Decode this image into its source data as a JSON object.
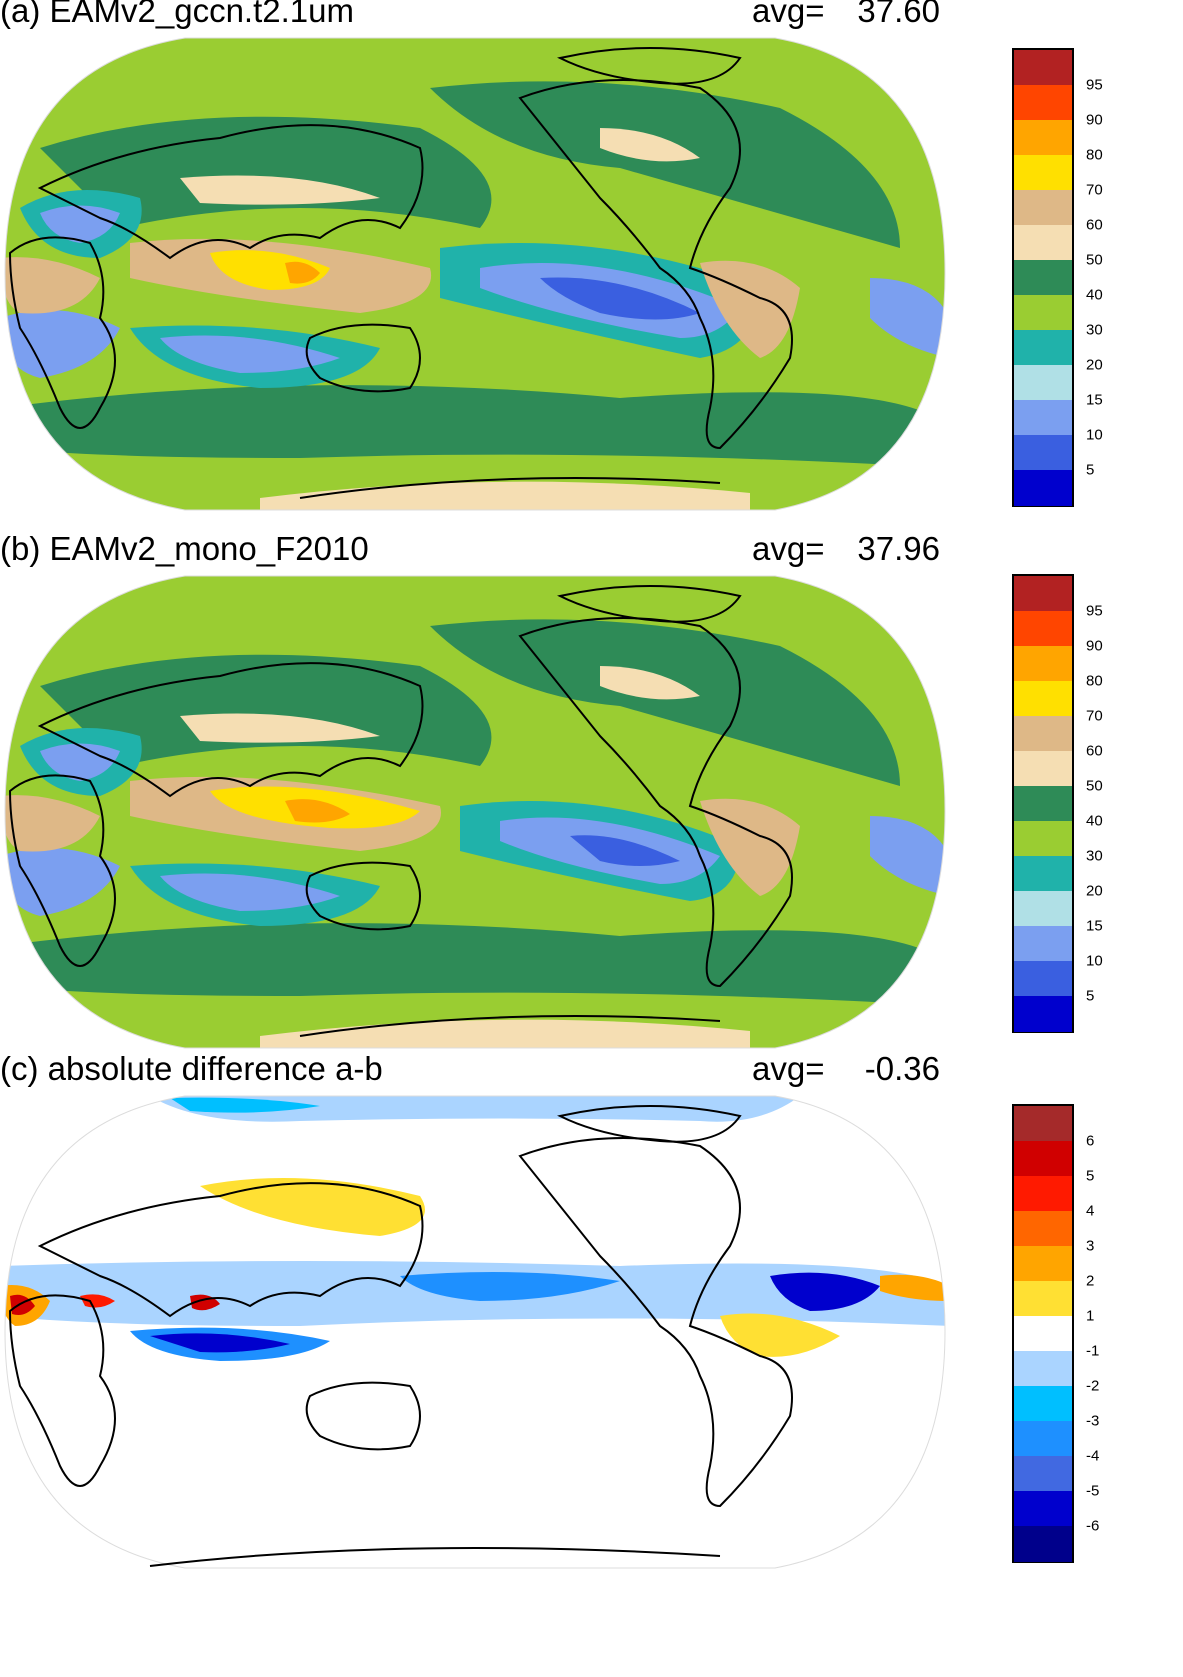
{
  "panels": [
    {
      "id": "a",
      "title": "(a) EAMv2_gccn.t2.1um",
      "avg_label": "avg=",
      "avg_value": "37.60",
      "colorbar": {
        "labels": [
          "95",
          "90",
          "80",
          "70",
          "60",
          "50",
          "40",
          "30",
          "20",
          "15",
          "10",
          "5"
        ],
        "colors": [
          "#b22222",
          "#ff4500",
          "#ffa500",
          "#ffe000",
          "#deb887",
          "#f5deb3",
          "#2e8b57",
          "#9acd32",
          "#20b2aa",
          "#b0e0e6",
          "#7b9ff0",
          "#3a5fe0",
          "#0000cd"
        ]
      }
    },
    {
      "id": "b",
      "title": "(b) EAMv2_mono_F2010",
      "avg_label": "avg=",
      "avg_value": "37.96",
      "colorbar": {
        "labels": [
          "95",
          "90",
          "80",
          "70",
          "60",
          "50",
          "40",
          "30",
          "20",
          "15",
          "10",
          "5"
        ],
        "colors": [
          "#b22222",
          "#ff4500",
          "#ffa500",
          "#ffe000",
          "#deb887",
          "#f5deb3",
          "#2e8b57",
          "#9acd32",
          "#20b2aa",
          "#b0e0e6",
          "#7b9ff0",
          "#3a5fe0",
          "#0000cd"
        ]
      }
    },
    {
      "id": "c",
      "title": "(c) absolute difference a-b",
      "avg_label": "avg=",
      "avg_value": "-0.36",
      "colorbar": {
        "labels": [
          "6",
          "5",
          "4",
          "3",
          "2",
          "1",
          "-1",
          "-2",
          "-3",
          "-4",
          "-5",
          "-6"
        ],
        "colors": [
          "#a52a2a",
          "#d00000",
          "#ff1a00",
          "#ff6600",
          "#ffa500",
          "#ffe033",
          "#ffffff",
          "#aad4ff",
          "#00bfff",
          "#1e90ff",
          "#4169e1",
          "#0000cd",
          "#00008b"
        ]
      }
    }
  ]
}
